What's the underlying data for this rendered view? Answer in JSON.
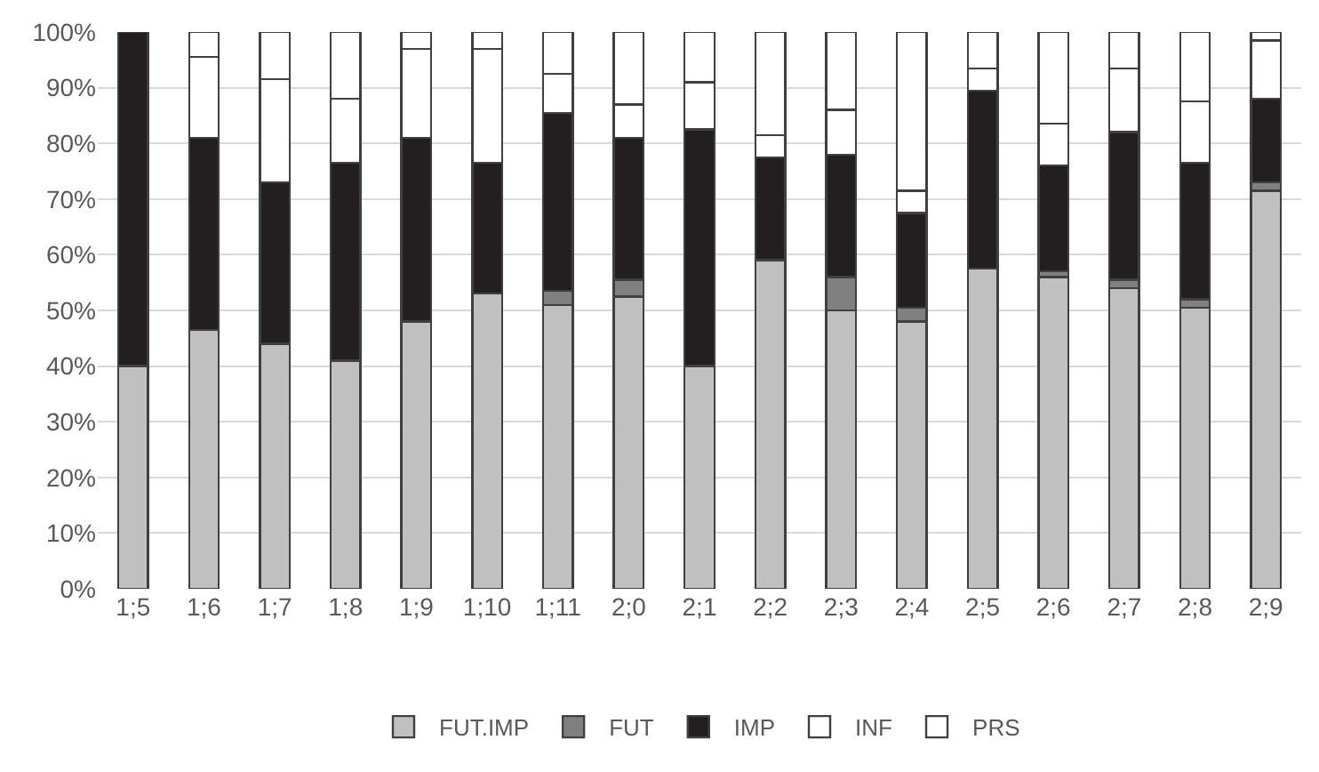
{
  "chart_data": {
    "type": "bar",
    "stacked": true,
    "categories": [
      "1;5",
      "1;6",
      "1;7",
      "1;8",
      "1;9",
      "1;10",
      "1;11",
      "2;0",
      "2;1",
      "2;2",
      "2;3",
      "2;4",
      "2;5",
      "2;6",
      "2;7",
      "2;8",
      "2;9"
    ],
    "series": [
      {
        "name": "FUT.IMP",
        "color": "#c0c0c0",
        "values": [
          40,
          46.5,
          44,
          41,
          48,
          53,
          51,
          52.5,
          40,
          59,
          50,
          48,
          57.5,
          56,
          54,
          50.5,
          71.5
        ]
      },
      {
        "name": "FUT",
        "color": "#808080",
        "values": [
          0,
          0,
          0,
          0,
          0,
          0,
          2.5,
          3,
          0,
          0,
          6,
          2.5,
          0,
          1,
          1.5,
          1.5,
          1.5
        ]
      },
      {
        "name": "IMP",
        "color": "#231f20",
        "values": [
          60,
          34.5,
          29,
          35.5,
          33,
          23.5,
          32,
          25.5,
          42.5,
          18.5,
          22,
          17,
          32,
          19,
          26.5,
          24.5,
          15
        ]
      },
      {
        "name": "INF",
        "color": "#ffffff",
        "values": [
          0,
          14.5,
          18.5,
          11.5,
          16,
          20.5,
          7,
          6,
          8.5,
          4,
          8,
          4,
          4,
          7.5,
          11.5,
          11,
          10.5
        ]
      },
      {
        "name": "PRS",
        "color": "#ffffff",
        "values": [
          0,
          4.5,
          8.5,
          12,
          3,
          3,
          7.5,
          13,
          9,
          18.5,
          14,
          28.5,
          6.5,
          16.5,
          6.5,
          12.5,
          1.5
        ]
      }
    ],
    "ylim": [
      0,
      100
    ],
    "yticks": [
      {
        "value": 0,
        "label": "0%"
      },
      {
        "value": 10,
        "label": "10%"
      },
      {
        "value": 20,
        "label": "20%"
      },
      {
        "value": 30,
        "label": "30%"
      },
      {
        "value": 40,
        "label": "40%"
      },
      {
        "value": 50,
        "label": "50%"
      },
      {
        "value": 60,
        "label": "60%"
      },
      {
        "value": 70,
        "label": "70%"
      },
      {
        "value": 80,
        "label": "80%"
      },
      {
        "value": 90,
        "label": "90%"
      },
      {
        "value": 100,
        "label": "100%"
      }
    ],
    "grid": "y",
    "legend": "bottom"
  }
}
